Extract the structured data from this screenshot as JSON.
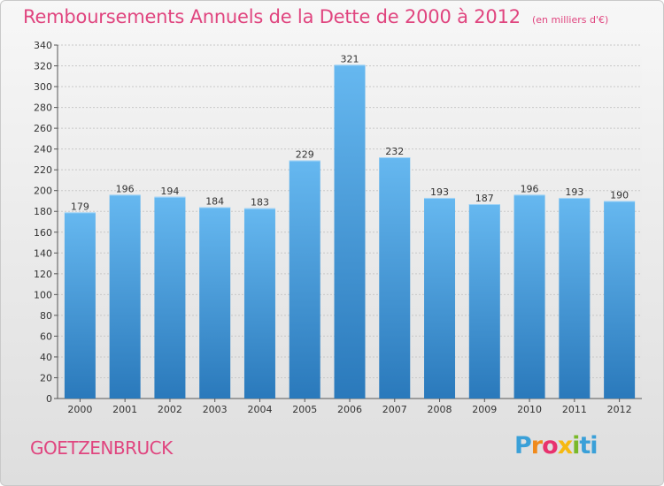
{
  "title": "Remboursements Annuels de la Dette de 2000 à 2012",
  "subtitle": "(en milliers d'€)",
  "commune": "GOETZENBRUCK",
  "logo": {
    "text": "Proxiti",
    "colors": [
      "#3aa0d8",
      "#f08a1c",
      "#e8326e",
      "#f6b911",
      "#7ab929",
      "#3aa0d8"
    ]
  },
  "colors": {
    "bar": "#4da3e2",
    "bar_light": "#66b8f0",
    "bar_dark": "#2d7fc0",
    "accent": "#e0457f",
    "axis_text": "#333333"
  },
  "chart_data": {
    "type": "bar",
    "categories": [
      "2000",
      "2001",
      "2002",
      "2003",
      "2004",
      "2005",
      "2006",
      "2007",
      "2008",
      "2009",
      "2010",
      "2011",
      "2012"
    ],
    "values": [
      179,
      196,
      194,
      184,
      183,
      229,
      321,
      232,
      193,
      187,
      196,
      193,
      190
    ],
    "title": "Remboursements Annuels de la Dette de 2000 à 2012",
    "subtitle": "(en milliers d'€)",
    "ylim": [
      0,
      340
    ],
    "ytick_step": 20,
    "grid": true,
    "legend": "none"
  }
}
